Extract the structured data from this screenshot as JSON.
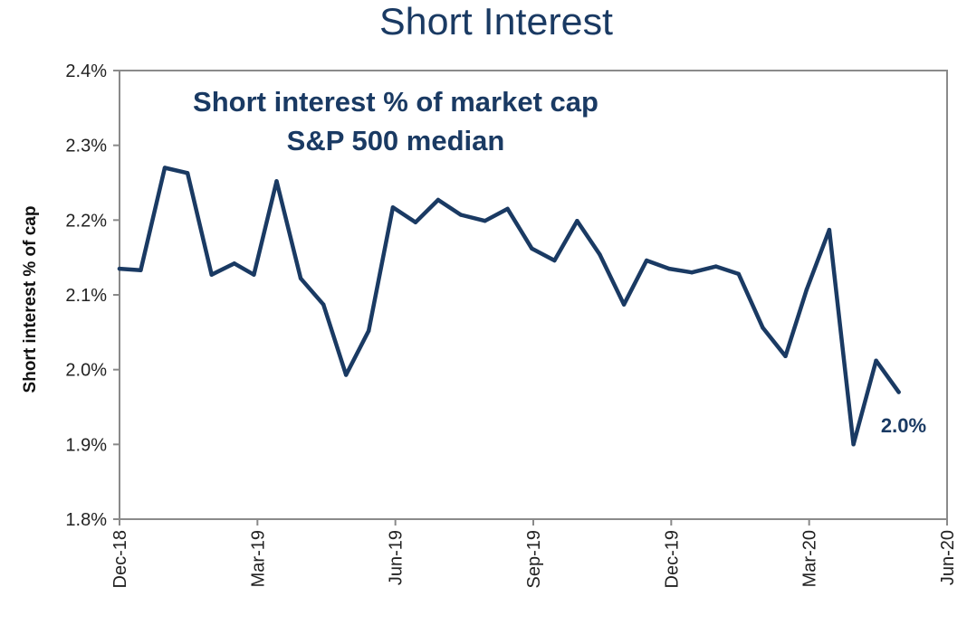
{
  "chart_data": {
    "type": "line",
    "title": "Short Interest",
    "ylabel": "Short interest % of cap",
    "xlabel": "",
    "annotations": [
      "Short interest % of market cap",
      "S&P 500 median"
    ],
    "end_label": "2.0%",
    "x_ticks": [
      "Dec-18",
      "Mar-19",
      "Jun-19",
      "Sep-19",
      "Dec-19",
      "Mar-20",
      "Jun-20"
    ],
    "y_ticks": [
      "1.8%",
      "1.9%",
      "2.0%",
      "2.1%",
      "2.2%",
      "2.3%",
      "2.4%"
    ],
    "ylim": [
      1.8,
      2.4
    ],
    "xlim": [
      "2018-12-01",
      "2020-06-01"
    ],
    "grid": false,
    "colors": {
      "line": "#1a3a63",
      "axis": "#8a8a8a"
    },
    "series": [
      {
        "points": [
          {
            "x": "2018-12-01",
            "y": 2.135
          },
          {
            "x": "2018-12-15",
            "y": 2.133
          },
          {
            "x": "2018-12-31",
            "y": 2.27
          },
          {
            "x": "2019-01-15",
            "y": 2.263
          },
          {
            "x": "2019-01-31",
            "y": 2.127
          },
          {
            "x": "2019-02-15",
            "y": 2.142
          },
          {
            "x": "2019-02-28",
            "y": 2.127
          },
          {
            "x": "2019-03-15",
            "y": 2.252
          },
          {
            "x": "2019-03-31",
            "y": 2.122
          },
          {
            "x": "2019-04-15",
            "y": 2.087
          },
          {
            "x": "2019-04-30",
            "y": 1.993
          },
          {
            "x": "2019-05-15",
            "y": 2.052
          },
          {
            "x": "2019-05-31",
            "y": 2.217
          },
          {
            "x": "2019-06-15",
            "y": 2.197
          },
          {
            "x": "2019-06-30",
            "y": 2.227
          },
          {
            "x": "2019-07-15",
            "y": 2.207
          },
          {
            "x": "2019-07-31",
            "y": 2.199
          },
          {
            "x": "2019-08-15",
            "y": 2.215
          },
          {
            "x": "2019-08-31",
            "y": 2.162
          },
          {
            "x": "2019-09-15",
            "y": 2.146
          },
          {
            "x": "2019-09-30",
            "y": 2.199
          },
          {
            "x": "2019-10-15",
            "y": 2.154
          },
          {
            "x": "2019-10-31",
            "y": 2.087
          },
          {
            "x": "2019-11-15",
            "y": 2.146
          },
          {
            "x": "2019-11-30",
            "y": 2.135
          },
          {
            "x": "2019-12-15",
            "y": 2.13
          },
          {
            "x": "2019-12-31",
            "y": 2.138
          },
          {
            "x": "2020-01-15",
            "y": 2.128
          },
          {
            "x": "2020-01-31",
            "y": 2.056
          },
          {
            "x": "2020-02-15",
            "y": 2.018
          },
          {
            "x": "2020-02-29",
            "y": 2.107
          },
          {
            "x": "2020-03-15",
            "y": 2.187
          },
          {
            "x": "2020-03-31",
            "y": 1.9
          },
          {
            "x": "2020-04-15",
            "y": 2.012
          },
          {
            "x": "2020-04-30",
            "y": 1.97
          }
        ]
      }
    ]
  }
}
